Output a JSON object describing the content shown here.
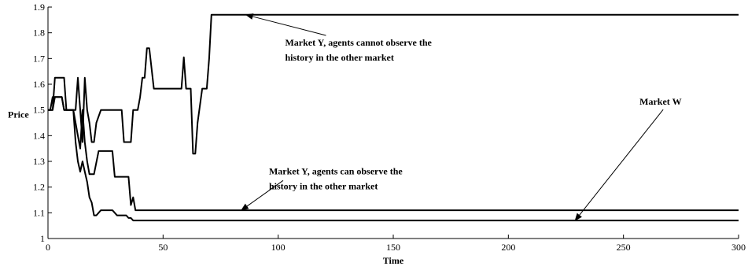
{
  "chart_data": {
    "type": "line",
    "xlabel": "Time",
    "ylabel": "Price",
    "xlim": [
      0,
      300
    ],
    "ylim": [
      1,
      1.9
    ],
    "xticks": [
      "0",
      "50",
      "100",
      "150",
      "200",
      "250",
      "300"
    ],
    "yticks": [
      "1",
      "1.1",
      "1.2",
      "1.3",
      "1.4",
      "1.5",
      "1.6",
      "1.7",
      "1.8",
      "1.9"
    ],
    "grid": false,
    "series": [
      {
        "x": [
          0,
          2,
          3,
          7,
          8,
          12,
          13,
          14,
          15,
          16,
          17,
          18,
          19,
          20,
          21,
          23,
          24,
          32,
          33,
          36,
          37,
          39,
          40,
          41,
          42,
          43,
          44,
          46,
          58,
          59,
          60,
          62,
          63,
          64,
          65,
          67,
          68,
          69,
          70,
          71,
          300
        ],
        "y": [
          1.5,
          1.5,
          1.625,
          1.625,
          1.5,
          1.5,
          1.625,
          1.5,
          1.375,
          1.625,
          1.5,
          1.45,
          1.375,
          1.375,
          1.45,
          1.5,
          1.5,
          1.5,
          1.375,
          1.375,
          1.5,
          1.5,
          1.55,
          1.625,
          1.625,
          1.74,
          1.74,
          1.583,
          1.583,
          1.705,
          1.583,
          1.583,
          1.33,
          1.33,
          1.45,
          1.583,
          1.583,
          1.583,
          1.7,
          1.87,
          1.87
        ]
      },
      {
        "x": [
          0,
          1,
          2,
          3,
          6,
          7,
          8,
          10,
          11,
          12,
          13,
          14,
          15,
          16,
          17,
          18,
          19,
          20,
          22,
          23,
          25,
          26,
          28,
          29,
          30,
          35,
          36,
          37,
          38,
          300
        ],
        "y": [
          1.5,
          1.5,
          1.55,
          1.55,
          1.55,
          1.5,
          1.5,
          1.5,
          1.5,
          1.45,
          1.4,
          1.35,
          1.5,
          1.375,
          1.3,
          1.25,
          1.25,
          1.25,
          1.34,
          1.34,
          1.34,
          1.34,
          1.34,
          1.24,
          1.24,
          1.24,
          1.13,
          1.16,
          1.11,
          1.11
        ]
      },
      {
        "x": [
          0,
          2,
          3,
          6,
          7,
          8,
          10,
          11,
          12,
          13,
          14,
          15,
          16,
          17,
          18,
          19,
          20,
          21,
          22,
          23,
          24,
          26,
          28,
          30,
          32,
          33,
          34,
          35,
          36,
          37,
          38,
          300
        ],
        "y": [
          1.5,
          1.5,
          1.55,
          1.55,
          1.5,
          1.5,
          1.5,
          1.5,
          1.375,
          1.3,
          1.26,
          1.3,
          1.26,
          1.22,
          1.16,
          1.14,
          1.09,
          1.09,
          1.1,
          1.11,
          1.11,
          1.11,
          1.11,
          1.09,
          1.09,
          1.09,
          1.09,
          1.08,
          1.08,
          1.07,
          1.07,
          1.07
        ]
      }
    ],
    "annotations": [
      {
        "lines": [
          "Market Y, agents cannot observe the",
          "history in the other market"
        ],
        "target": [
          86,
          1.87
        ],
        "text_at": [
          103,
          1.75
        ]
      },
      {
        "lines": [
          "Market Y, agents can observe the",
          "history in the other market"
        ],
        "target": [
          84,
          1.11
        ],
        "text_at": [
          96,
          1.25
        ]
      },
      {
        "lines": [
          "Market W"
        ],
        "target": [
          229,
          1.07
        ],
        "text_at": [
          257,
          1.52
        ]
      }
    ]
  }
}
